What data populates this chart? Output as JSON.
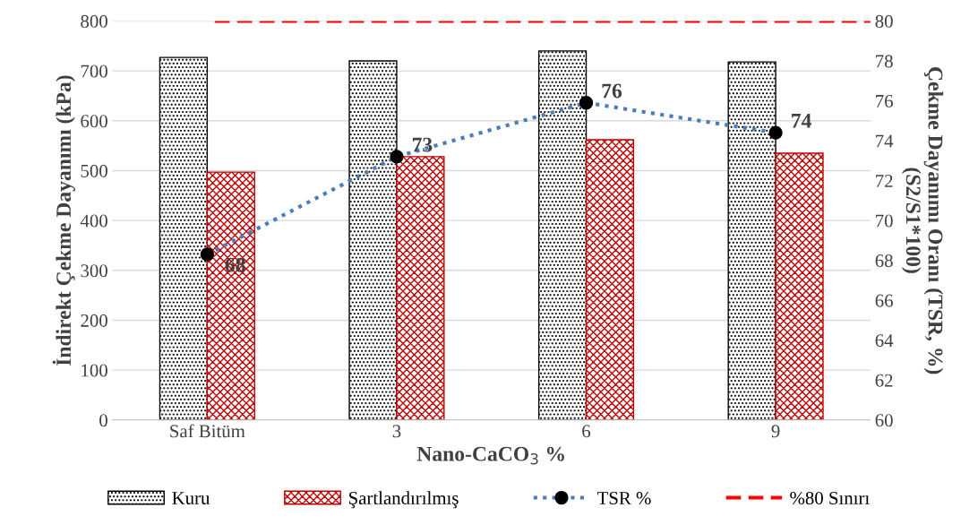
{
  "chart_data": {
    "type": "bar",
    "xlabel": "Nano-CaCO$_{3}$ %",
    "ylabel": "İndirekt Çekme Dayanımı (kPa)",
    "y2label": "Çekme Dayanımı Oranı (TSR, %)\n(S2/S1*100)",
    "categories": [
      "Saf Bitüm",
      "3",
      "6",
      "9"
    ],
    "series": [
      {
        "name": "Kuru",
        "color": "#000000",
        "values": [
          727,
          720,
          740,
          718
        ]
      },
      {
        "name": "Şartlandırılmış",
        "color": "#c00000",
        "values": [
          497,
          528,
          562,
          535
        ]
      },
      {
        "name": "TSR %",
        "type": "line",
        "axis": "y2",
        "color": "#4a7ebb",
        "marker": "circle",
        "line_style": "dotted",
        "values": [
          68.3,
          73.2,
          75.9,
          74.4
        ],
        "value_labels": [
          "68",
          "73",
          "76",
          "74"
        ]
      }
    ],
    "ref_lines": [
      {
        "axis": "y2",
        "value": 80,
        "label": "%80 Sınırı",
        "color": "#ff0000",
        "line_style": "dashed"
      }
    ],
    "ylim": [
      0,
      800
    ],
    "yticks": [
      0,
      100,
      200,
      300,
      400,
      500,
      600,
      700,
      800
    ],
    "y2lim": [
      60,
      80
    ],
    "y2ticks": [
      60,
      62,
      64,
      66,
      68,
      70,
      72,
      74,
      76,
      78,
      80
    ],
    "grid": "y",
    "legend": "bottom"
  }
}
